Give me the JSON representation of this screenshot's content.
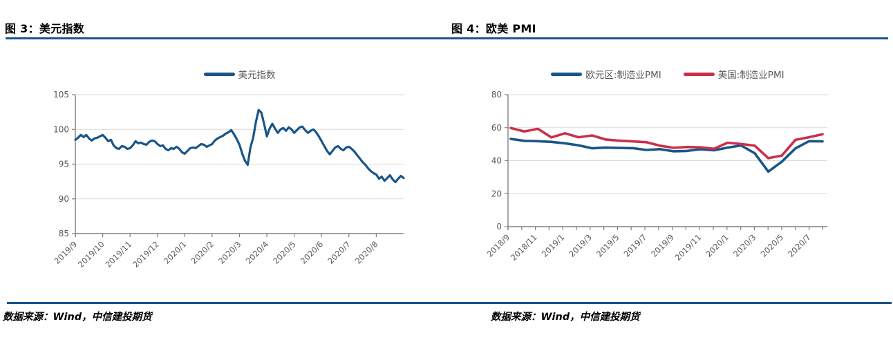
{
  "figure3": {
    "title": "图 3：美元指数",
    "source_note": "数据来源：Wind，中信建投期货"
  },
  "figure4": {
    "title": "图 4：欧美 PMI",
    "source_note": "数据来源：Wind，中信建投期货"
  },
  "colors": {
    "accent_blue": "#17558C",
    "line_blue": "#1A5588",
    "line_red": "#C9304A",
    "grid": "#D9D9D9",
    "axis": "#808080",
    "tick_text": "#595959",
    "legend_text": "#595959",
    "title_text": "#000000"
  },
  "chart_data": [
    {
      "type": "line",
      "title": "图 3：美元指数",
      "legend_position": "top",
      "grid": true,
      "ylim": [
        85,
        105
      ],
      "yticks": [
        85,
        90,
        95,
        100,
        105
      ],
      "x_tick_labels": [
        "2019/9",
        "2019/10",
        "2019/11",
        "2019/12",
        "2020/1",
        "2020/2",
        "2020/3",
        "2020/4",
        "2020/5",
        "2020/6",
        "2020/7",
        "2020/8"
      ],
      "x_note": "daily values, 2019/9 through 2020/9, evenly spaced",
      "series": [
        {
          "name": "美元指数",
          "color": "#1A5588",
          "values": [
            98.5,
            98.8,
            99.2,
            98.9,
            99.2,
            98.7,
            98.4,
            98.7,
            98.8,
            99.0,
            99.2,
            98.8,
            98.3,
            98.5,
            97.7,
            97.3,
            97.2,
            97.6,
            97.5,
            97.2,
            97.3,
            97.7,
            98.3,
            98.0,
            98.1,
            97.9,
            97.8,
            98.2,
            98.4,
            98.3,
            97.9,
            97.6,
            97.7,
            97.2,
            97.0,
            97.3,
            97.2,
            97.5,
            97.2,
            96.7,
            96.5,
            96.9,
            97.3,
            97.4,
            97.3,
            97.6,
            97.9,
            97.8,
            97.5,
            97.7,
            97.9,
            98.4,
            98.7,
            98.9,
            99.1,
            99.4,
            99.6,
            99.9,
            99.3,
            98.6,
            97.8,
            96.5,
            95.5,
            94.9,
            97.4,
            98.8,
            101.1,
            102.8,
            102.4,
            100.8,
            99.0,
            100.1,
            100.8,
            100.1,
            99.5,
            100.0,
            100.2,
            99.8,
            100.3,
            100.0,
            99.5,
            99.9,
            100.3,
            100.4,
            99.9,
            99.5,
            99.8,
            100.0,
            99.6,
            99.0,
            98.3,
            97.6,
            96.9,
            96.4,
            96.9,
            97.4,
            97.6,
            97.2,
            97.0,
            97.4,
            97.5,
            97.2,
            96.8,
            96.3,
            95.8,
            95.3,
            94.9,
            94.4,
            94.0,
            93.7,
            93.5,
            92.9,
            93.2,
            92.6,
            93.0,
            93.4,
            92.8,
            92.4,
            92.9,
            93.3,
            93.0
          ]
        }
      ]
    },
    {
      "type": "line",
      "title": "图 4：欧美 PMI",
      "legend_position": "top",
      "grid": true,
      "ylim": [
        0,
        80
      ],
      "yticks": [
        0,
        20,
        40,
        60,
        80
      ],
      "categories": [
        "2018/9",
        "2018/10",
        "2018/11",
        "2018/12",
        "2019/1",
        "2019/2",
        "2019/3",
        "2019/4",
        "2019/5",
        "2019/6",
        "2019/7",
        "2019/8",
        "2019/9",
        "2019/10",
        "2019/11",
        "2019/12",
        "2020/1",
        "2020/2",
        "2020/3",
        "2020/4",
        "2020/5",
        "2020/6",
        "2020/7",
        "2020/8"
      ],
      "x_tick_labels": [
        "2018/9",
        "2018/11",
        "2019/1",
        "2019/3",
        "2019/5",
        "2019/7",
        "2019/9",
        "2019/11",
        "2020/1",
        "2020/3",
        "2020/5",
        "2020/7"
      ],
      "series": [
        {
          "name": "欧元区:制造业PMI",
          "color": "#1A5588",
          "values": [
            53.2,
            52.0,
            51.8,
            51.4,
            50.5,
            49.3,
            47.5,
            47.9,
            47.7,
            47.6,
            46.5,
            47.0,
            45.7,
            45.9,
            46.9,
            46.3,
            47.9,
            49.2,
            44.5,
            33.4,
            39.4,
            47.4,
            51.8,
            51.7
          ]
        },
        {
          "name": "美国:制造业PMI",
          "color": "#C9304A",
          "values": [
            59.8,
            57.7,
            59.3,
            54.1,
            56.6,
            54.2,
            55.3,
            52.8,
            52.1,
            51.7,
            51.2,
            49.1,
            47.8,
            48.3,
            48.1,
            47.2,
            50.9,
            50.1,
            49.1,
            41.5,
            43.1,
            52.6,
            54.2,
            56.0
          ]
        }
      ]
    }
  ]
}
